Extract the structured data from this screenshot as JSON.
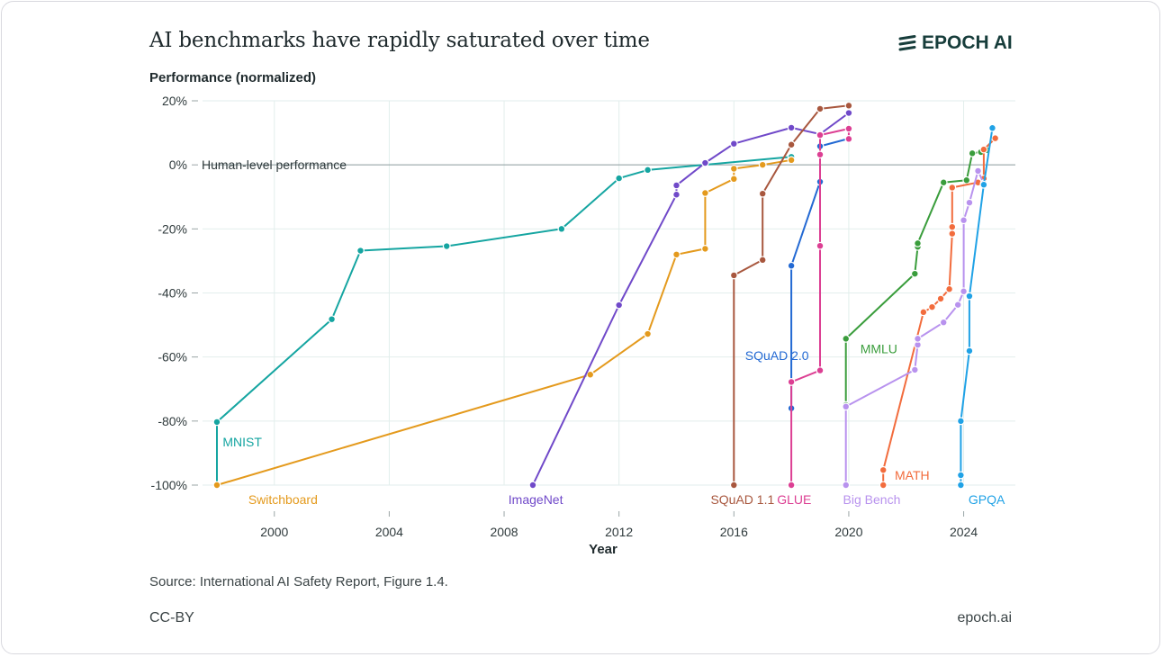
{
  "header": {
    "title": "AI benchmarks have rapidly saturated over time",
    "logo_text": "EPOCH AI"
  },
  "footer": {
    "source": "Source: International AI Safety Report, Figure 1.4.",
    "license": "CC-BY",
    "site": "epoch.ai"
  },
  "chart_data": {
    "type": "line",
    "ylabel": "Performance (normalized)",
    "xlabel": "Year",
    "xlim": [
      1997.5,
      2025.8
    ],
    "ylim": [
      -100,
      20
    ],
    "x_ticks": [
      2000,
      2004,
      2008,
      2012,
      2016,
      2020,
      2024
    ],
    "y_ticks": [
      {
        "value": 20,
        "label": "20%"
      },
      {
        "value": 0,
        "label": "0%"
      },
      {
        "value": -20,
        "label": "-20%"
      },
      {
        "value": -40,
        "label": "-40%"
      },
      {
        "value": -60,
        "label": "-60%"
      },
      {
        "value": -80,
        "label": "-80%"
      },
      {
        "value": -100,
        "label": "-100%"
      }
    ],
    "grid": true,
    "reference_line": {
      "y": 0,
      "label": "Human-level performance",
      "color": "#8a9a9c"
    },
    "series": [
      {
        "name": "MNIST",
        "color": "#15a5a1",
        "points": [
          [
            1998,
            -100
          ],
          [
            1998,
            -80.3
          ],
          [
            2002,
            -48.2
          ],
          [
            2003,
            -26.8
          ],
          [
            2006,
            -25.4
          ],
          [
            2010,
            -20
          ],
          [
            2012,
            -4.2
          ],
          [
            2013,
            -1.6
          ],
          [
            2018,
            2.5
          ]
        ]
      },
      {
        "name": "Switchboard",
        "color": "#e49a1d",
        "points": [
          [
            1998,
            -100
          ],
          [
            2011,
            -65.5
          ],
          [
            2013,
            -52.8
          ],
          [
            2014,
            -28
          ],
          [
            2015,
            -26.2
          ],
          [
            2015,
            -8.8
          ],
          [
            2016,
            -4.4
          ],
          [
            2016,
            -1.2
          ],
          [
            2017,
            0
          ],
          [
            2018,
            1.5
          ]
        ]
      },
      {
        "name": "ImageNet",
        "color": "#7049c9",
        "points": [
          [
            2009,
            -100
          ],
          [
            2012,
            -43.8
          ],
          [
            2014,
            -9.3
          ],
          [
            2014,
            -6.4
          ],
          [
            2015,
            0.6
          ],
          [
            2016,
            6.6
          ],
          [
            2018,
            11.6
          ],
          [
            2019,
            9.6
          ],
          [
            2020,
            16.2
          ]
        ]
      },
      {
        "name": "SQuAD 1.1",
        "color": "#a8573e",
        "points": [
          [
            2016,
            -100
          ],
          [
            2016,
            -34.5
          ],
          [
            2017,
            -29.7
          ],
          [
            2017,
            -9
          ],
          [
            2018,
            6.3
          ],
          [
            2019,
            17.5
          ],
          [
            2020,
            18.5
          ]
        ]
      },
      {
        "name": "SQuAD 2.0",
        "color": "#2369d3",
        "points": [
          [
            2018,
            -76
          ],
          [
            2018,
            -31.5
          ],
          [
            2019,
            -5.3
          ],
          [
            2019,
            5.8
          ],
          [
            2020,
            8.2
          ]
        ]
      },
      {
        "name": "GLUE",
        "color": "#dc3f93",
        "points": [
          [
            2018,
            -100
          ],
          [
            2018,
            -67.8
          ],
          [
            2019,
            -64.2
          ],
          [
            2019,
            -25.3
          ],
          [
            2019,
            3.2
          ],
          [
            2019,
            9.3
          ],
          [
            2020,
            11.3
          ],
          [
            2020,
            8.1
          ]
        ]
      },
      {
        "name": "MMLU",
        "color": "#3a9d3c",
        "points": [
          [
            2019.9,
            -75
          ],
          [
            2019.9,
            -54.3
          ],
          [
            2022.3,
            -34
          ],
          [
            2022.4,
            -25.6
          ],
          [
            2022.4,
            -24.5
          ],
          [
            2023.3,
            -5.5
          ],
          [
            2024.1,
            -4.8
          ],
          [
            2024.3,
            3.6
          ],
          [
            2024.6,
            4
          ],
          [
            2024.8,
            4.6
          ]
        ]
      },
      {
        "name": "MATH",
        "color": "#f26c3d",
        "points": [
          [
            2021.2,
            -100
          ],
          [
            2021.2,
            -95.3
          ],
          [
            2022.6,
            -46
          ],
          [
            2022.9,
            -44.4
          ],
          [
            2023.2,
            -41.8
          ],
          [
            2023.5,
            -38.8
          ],
          [
            2023.6,
            -21.5
          ],
          [
            2023.6,
            -19.4
          ],
          [
            2023.6,
            -7.1
          ],
          [
            2024.5,
            -5.5
          ],
          [
            2024.7,
            -4.3
          ],
          [
            2024.7,
            4.8
          ],
          [
            2025.1,
            8.3
          ]
        ]
      },
      {
        "name": "Big Bench",
        "color": "#b892ee",
        "points": [
          [
            2019.9,
            -100
          ],
          [
            2019.9,
            -75.5
          ],
          [
            2022.3,
            -64
          ],
          [
            2022.4,
            -56.2
          ],
          [
            2022.4,
            -54.3
          ],
          [
            2023.3,
            -49.2
          ],
          [
            2023.8,
            -43.7
          ],
          [
            2024.0,
            -39.5
          ],
          [
            2024.0,
            -17.3
          ],
          [
            2024.2,
            -11.8
          ],
          [
            2024.5,
            -1.9
          ],
          [
            2024.7,
            -5.8
          ]
        ]
      },
      {
        "name": "GPQA",
        "color": "#20a2e6",
        "points": [
          [
            2023.9,
            -100
          ],
          [
            2023.9,
            -96.9
          ],
          [
            2023.9,
            -80
          ],
          [
            2024.2,
            -58.1
          ],
          [
            2024.2,
            -41
          ],
          [
            2024.7,
            -6.2
          ],
          [
            2025.0,
            11.5
          ]
        ]
      }
    ],
    "labels": [
      {
        "series": "MNIST",
        "text": "MNIST",
        "x": 1998.2,
        "y": -86.5,
        "anchor": "start"
      },
      {
        "series": "Switchboard",
        "text": "Switchboard",
        "x": 2000.3,
        "y": -104.5,
        "anchor": "middle"
      },
      {
        "series": "ImageNet",
        "text": "ImageNet",
        "x": 2009.1,
        "y": -104.5,
        "anchor": "middle"
      },
      {
        "series": "SQuAD 1.1",
        "text": "SQuAD 1.1",
        "x": 2016.3,
        "y": -104.5,
        "anchor": "middle"
      },
      {
        "series": "SQuAD 2.0",
        "text": "SQuAD 2.0",
        "x": 2017.5,
        "y": -59.6,
        "anchor": "middle"
      },
      {
        "series": "GLUE",
        "text": "GLUE",
        "x": 2018.1,
        "y": -104.5,
        "anchor": "middle"
      },
      {
        "series": "MMLU",
        "text": "MMLU",
        "x": 2020.4,
        "y": -57.4,
        "anchor": "start"
      },
      {
        "series": "MATH",
        "text": "MATH",
        "x": 2021.6,
        "y": -96.9,
        "anchor": "start"
      },
      {
        "series": "Big Bench",
        "text": "Big Bench",
        "x": 2020.8,
        "y": -104.5,
        "anchor": "middle"
      },
      {
        "series": "GPQA",
        "text": "GPQA",
        "x": 2024.8,
        "y": -104.5,
        "anchor": "middle"
      }
    ]
  }
}
